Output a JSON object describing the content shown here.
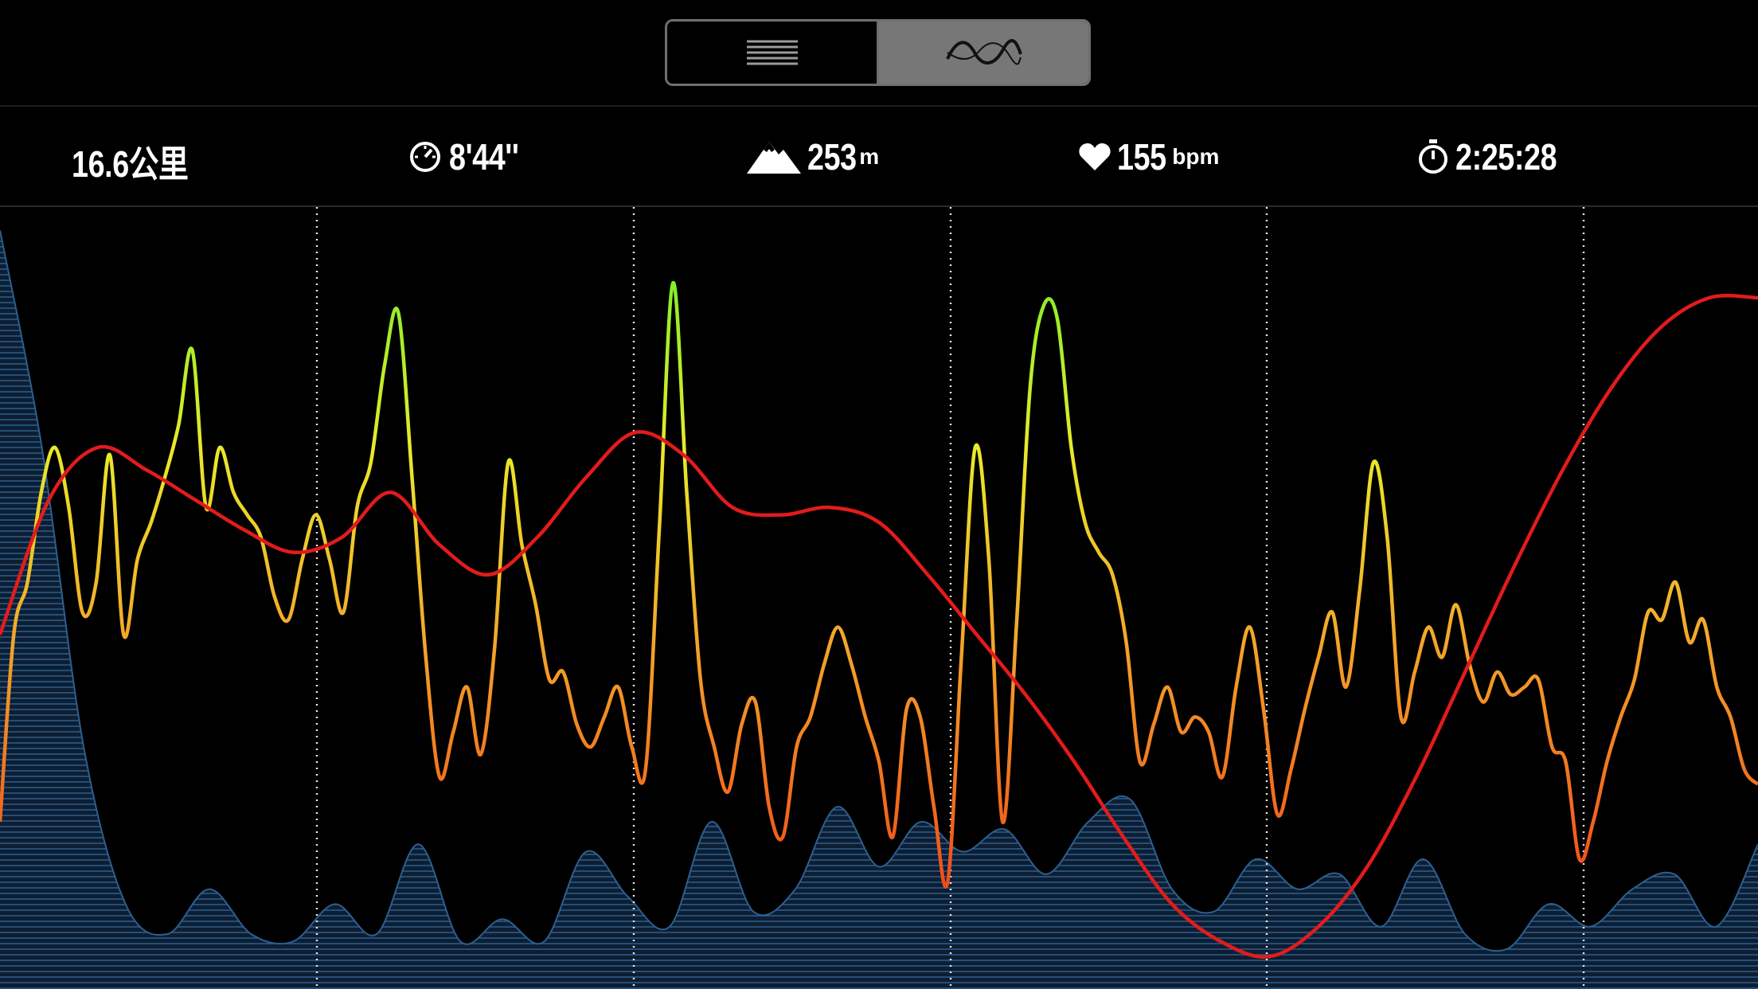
{
  "view_toggle": {
    "list_icon": "list-lines-icon",
    "chart_icon": "wave-chart-icon",
    "selected": "chart"
  },
  "stats": {
    "distance": "16.6公里",
    "pace": "8'44''",
    "elevation": "253",
    "elevation_unit": "m",
    "heart_rate": "155",
    "heart_rate_unit": "bpm",
    "duration": "2:25:28"
  },
  "colors": {
    "background": "#000000",
    "elevation_fill": "#17324f",
    "elevation_line": "#2d5f8f",
    "heart_rate_line": "#e31b1b",
    "pace_fast": "#6ef02a",
    "pace_mid": "#f2e22a",
    "pace_slow": "#f0401a",
    "toggle_selected": "#777777"
  },
  "chart_data": {
    "type": "line",
    "split_markers": 5,
    "series": [
      {
        "role": "pace",
        "style": "gradient-line",
        "values": [
          0.2,
          0.45,
          0.52,
          0.64,
          0.7,
          0.62,
          0.48,
          0.52,
          0.69,
          0.45,
          0.55,
          0.6,
          0.66,
          0.73,
          0.83,
          0.62,
          0.7,
          0.64,
          0.61,
          0.58,
          0.5,
          0.47,
          0.55,
          0.61,
          0.55,
          0.48,
          0.62,
          0.68,
          0.81,
          0.88,
          0.66,
          0.42,
          0.26,
          0.32,
          0.38,
          0.29,
          0.43,
          0.68,
          0.57,
          0.49,
          0.39,
          0.4,
          0.33,
          0.3,
          0.34,
          0.38,
          0.3,
          0.27,
          0.59,
          0.92,
          0.64,
          0.39,
          0.3,
          0.24,
          0.33,
          0.36,
          0.22,
          0.18,
          0.3,
          0.34,
          0.41,
          0.46,
          0.41,
          0.34,
          0.28,
          0.18,
          0.35,
          0.34,
          0.22,
          0.12,
          0.42,
          0.7,
          0.55,
          0.2,
          0.46,
          0.78,
          0.89,
          0.87,
          0.7,
          0.6,
          0.56,
          0.53,
          0.44,
          0.28,
          0.33,
          0.38,
          0.32,
          0.34,
          0.32,
          0.26,
          0.38,
          0.46,
          0.35,
          0.21,
          0.27,
          0.35,
          0.42,
          0.48,
          0.38,
          0.51,
          0.68,
          0.58,
          0.34,
          0.4,
          0.46,
          0.42,
          0.49,
          0.41,
          0.36,
          0.4,
          0.37,
          0.38,
          0.39,
          0.3,
          0.28,
          0.15,
          0.2,
          0.28,
          0.34,
          0.39,
          0.48,
          0.47,
          0.52,
          0.44,
          0.47,
          0.38,
          0.34,
          0.27,
          0.25
        ]
      },
      {
        "role": "heart-rate",
        "style": "line",
        "values": [
          0.45,
          0.63,
          0.7,
          0.67,
          0.63,
          0.59,
          0.56,
          0.58,
          0.64,
          0.57,
          0.53,
          0.58,
          0.66,
          0.72,
          0.69,
          0.62,
          0.61,
          0.62,
          0.6,
          0.53,
          0.45,
          0.37,
          0.28,
          0.18,
          0.09,
          0.04,
          0.02,
          0.06,
          0.14,
          0.26,
          0.4,
          0.54,
          0.67,
          0.78,
          0.86,
          0.9,
          0.9
        ]
      },
      {
        "role": "elevation",
        "style": "area",
        "values": [
          0.99,
          0.7,
          0.3,
          0.09,
          0.05,
          0.11,
          0.05,
          0.04,
          0.09,
          0.05,
          0.17,
          0.04,
          0.07,
          0.04,
          0.16,
          0.1,
          0.06,
          0.2,
          0.08,
          0.11,
          0.22,
          0.14,
          0.2,
          0.16,
          0.19,
          0.13,
          0.2,
          0.23,
          0.11,
          0.08,
          0.15,
          0.11,
          0.13,
          0.06,
          0.15,
          0.05,
          0.03,
          0.09,
          0.06,
          0.11,
          0.13,
          0.06,
          0.17
        ]
      }
    ]
  }
}
